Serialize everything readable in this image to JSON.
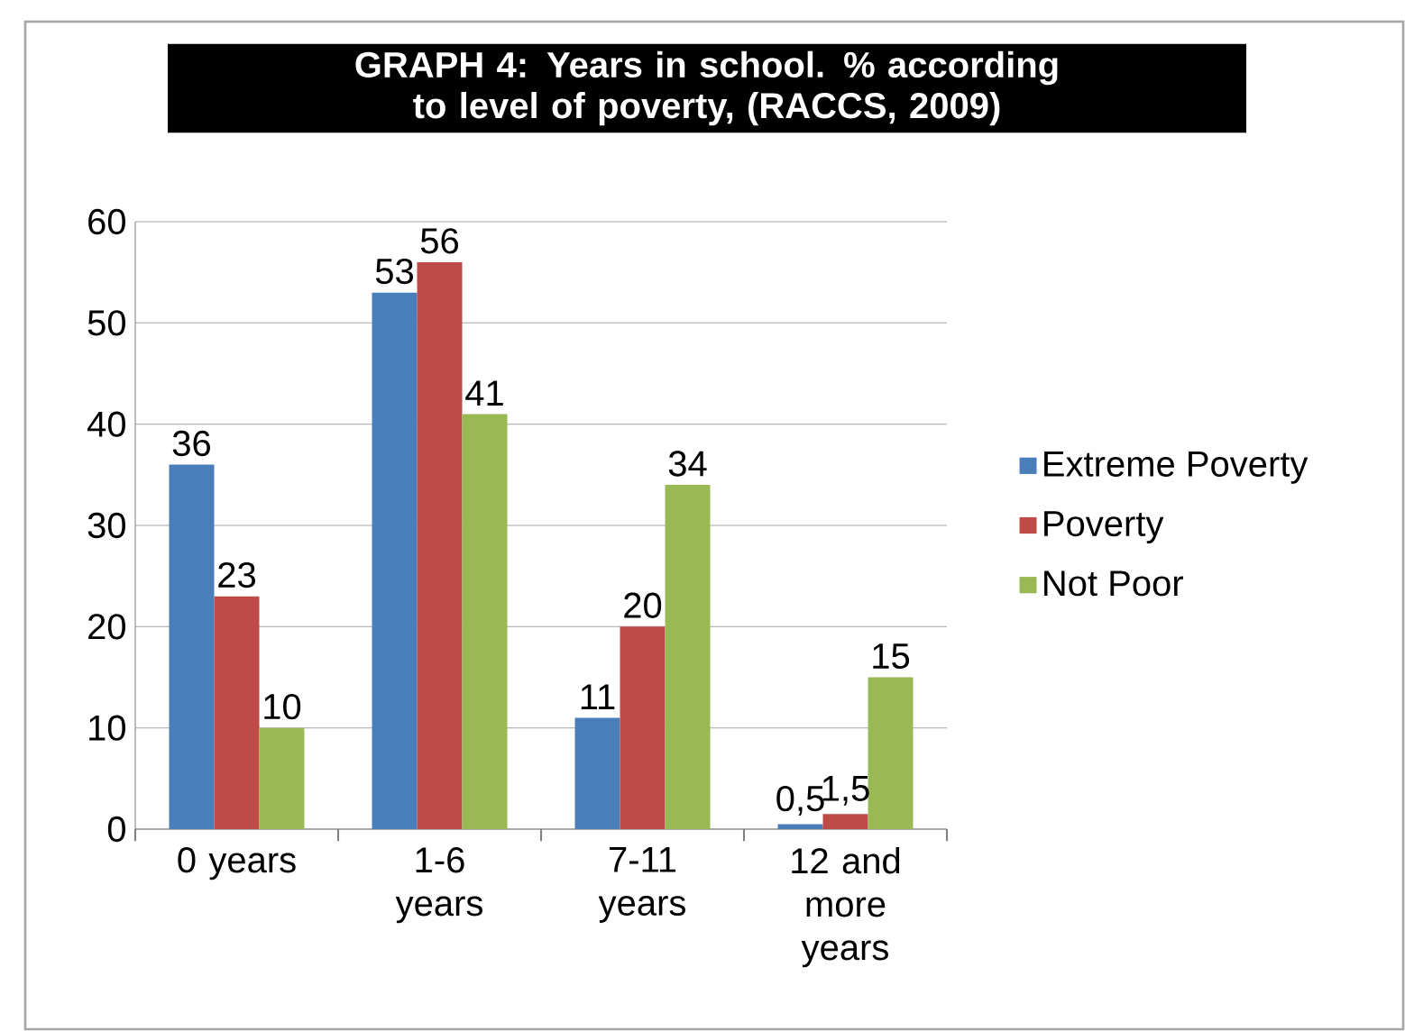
{
  "chart_data": {
    "type": "bar",
    "title": "GRAPH 4: Years in school. % according to level of poverty, (RACCS, 2009)",
    "categories": [
      "0 years",
      "1-6 years",
      "7-11 years",
      "12 and more years"
    ],
    "series": [
      {
        "name": "Extreme Poverty",
        "color": "#4a7ebb",
        "values": [
          36,
          53,
          11,
          0.5
        ],
        "value_labels": [
          "36",
          "53",
          "11",
          "0,5"
        ]
      },
      {
        "name": "Poverty",
        "color": "#be4b48",
        "values": [
          23,
          56,
          20,
          1.5
        ],
        "value_labels": [
          "23",
          "56",
          "20",
          "1,5"
        ]
      },
      {
        "name": "Not Poor",
        "color": "#98b954",
        "values": [
          10,
          41,
          34,
          15
        ],
        "value_labels": [
          "10",
          "41",
          "34",
          "15"
        ]
      }
    ],
    "ylim": [
      0,
      60
    ],
    "yticks": [
      0,
      10,
      20,
      30,
      40,
      50,
      60
    ],
    "grid": "y",
    "legend": "right"
  }
}
